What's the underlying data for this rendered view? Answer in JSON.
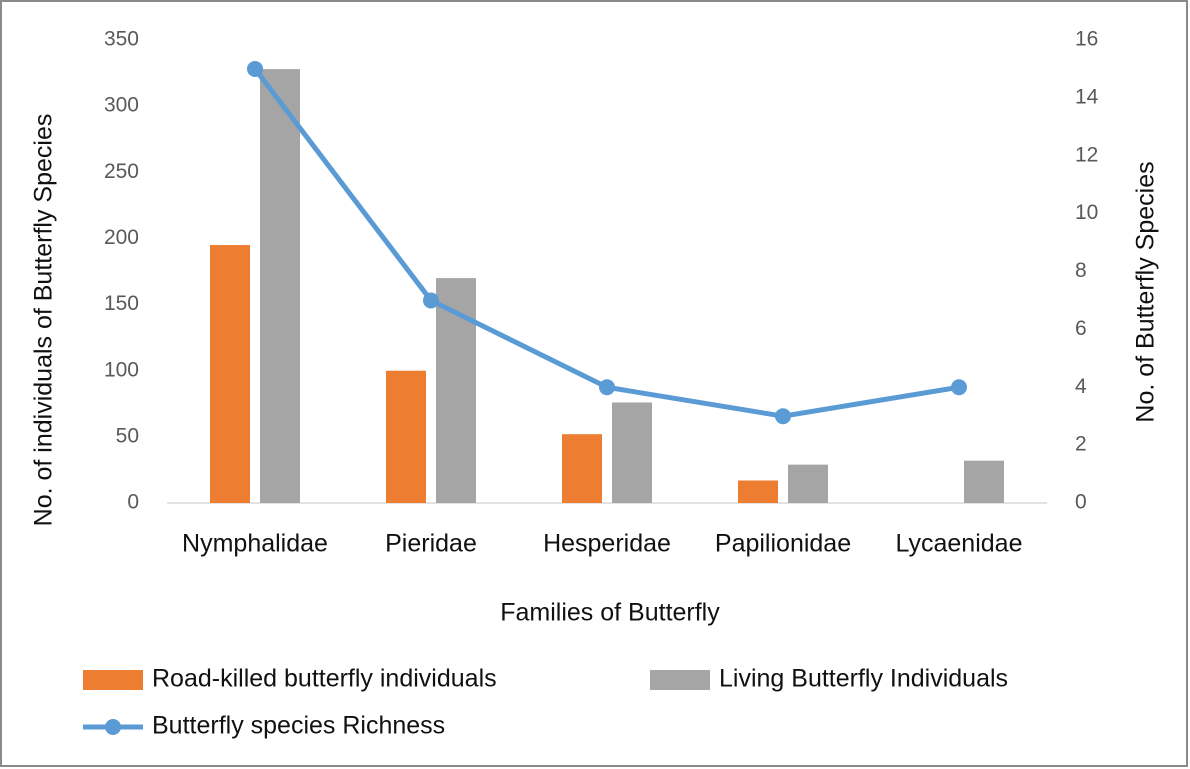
{
  "chart_data": {
    "type": "bar",
    "x_label": "Families of Butterfly",
    "y_label": "No. of individuals of Butterfly Species",
    "y2_label": "No. of Butterfly Species",
    "categories": [
      "Nymphalidae",
      "Pieridae",
      "Hesperidae",
      "Papilionidae",
      "Lycaenidae"
    ],
    "series": [
      {
        "name": "Road-killed butterfly individuals",
        "color": "#ed7d31",
        "values": [
          195,
          100,
          52,
          17,
          null
        ]
      },
      {
        "name": "Living Butterfly Individuals",
        "color": "#a5a5a5",
        "values": [
          328,
          170,
          76,
          29,
          32
        ]
      },
      {
        "name": "Butterfly species Richness",
        "color": "#5b9bd5",
        "type": "line",
        "axis": "y2",
        "values": [
          15,
          7,
          4,
          3,
          4
        ]
      }
    ],
    "ylim": [
      0,
      350
    ],
    "yticks": [
      0,
      50,
      100,
      150,
      200,
      250,
      300,
      350
    ],
    "y2lim": [
      0,
      16
    ],
    "y2ticks": [
      0,
      2,
      4,
      6,
      8,
      10,
      12,
      14,
      16
    ],
    "legend": "bottom"
  }
}
